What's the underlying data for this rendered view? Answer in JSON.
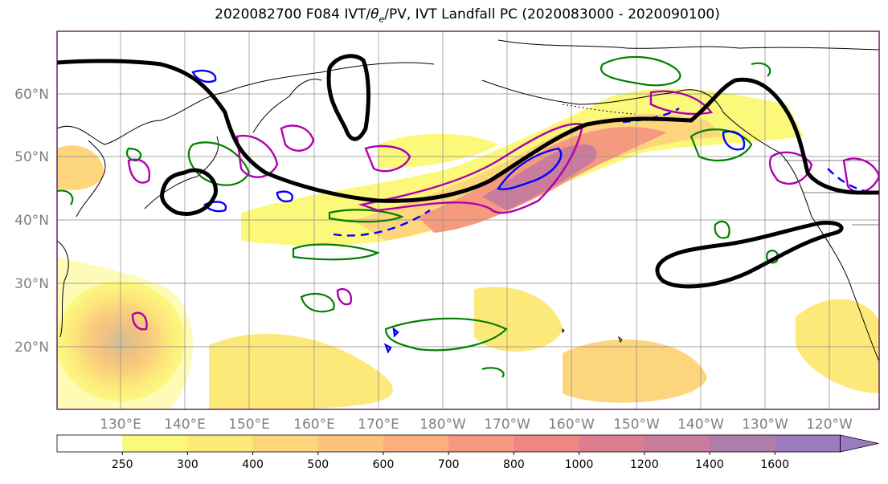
{
  "title": "2020082700 F084 IVT/θe/PV, IVT Landfall PC (2020083000 - 2020090100)",
  "title_parts": {
    "prefix": "2020082700 F084 IVT/",
    "theta": "θ",
    "sub": "e",
    "suffix": "/PV, IVT Landfall PC (2020083000 - 2020090100)"
  },
  "latitude_labels": [
    "60°N",
    "50°N",
    "40°N",
    "30°N",
    "20°N"
  ],
  "longitude_labels": [
    "130°E",
    "140°E",
    "150°E",
    "160°E",
    "170°E",
    "180°W",
    "170°W",
    "160°W",
    "150°W",
    "140°W",
    "130°W",
    "120°W"
  ],
  "colorbar": {
    "ticks": [
      "250",
      "300",
      "400",
      "500",
      "600",
      "700",
      "800",
      "1000",
      "1200",
      "1400",
      "1600"
    ],
    "colors": [
      "#ffffff",
      "#fbf87a",
      "#fce97a",
      "#fdd57c",
      "#fec27d",
      "#fcae7f",
      "#f69a7f",
      "#ee8782",
      "#dd7e8e",
      "#c97c9c",
      "#b07cab",
      "#9c7cc1"
    ]
  },
  "colors": {
    "ivt_contours": "#000000",
    "theta_e_contours": "#008000",
    "pv_contours": "#0000ff",
    "landfall_pc": "#b000b0",
    "coastline": "#000000",
    "grid": "#888888"
  }
}
